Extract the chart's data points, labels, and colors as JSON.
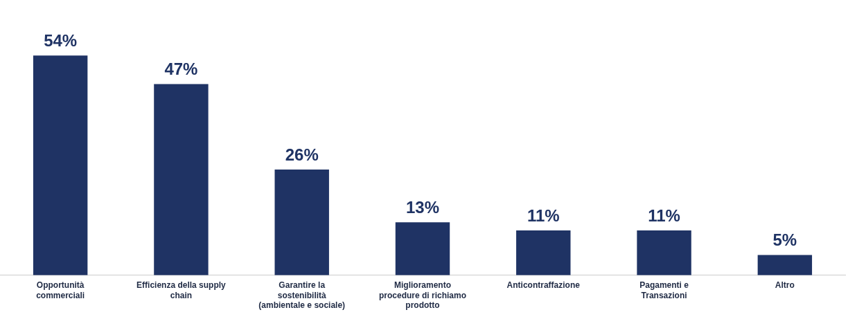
{
  "chart_data": {
    "type": "bar",
    "categories": [
      "Opportunità commerciali",
      "Efficienza della supply chain",
      "Garantire la sostenibilità (ambientale e sociale)",
      "Miglioramento procedure di richiamo prodotto",
      "Anticontraffazione",
      "Pagamenti e Transazioni",
      "Altro"
    ],
    "values": [
      54,
      47,
      26,
      13,
      11,
      11,
      5
    ],
    "value_labels": [
      "54%",
      "47%",
      "26%",
      "13%",
      "11%",
      "11%",
      "5%"
    ],
    "color": "#1f3364",
    "tick_labels": "x",
    "grid": false,
    "legend": false
  }
}
